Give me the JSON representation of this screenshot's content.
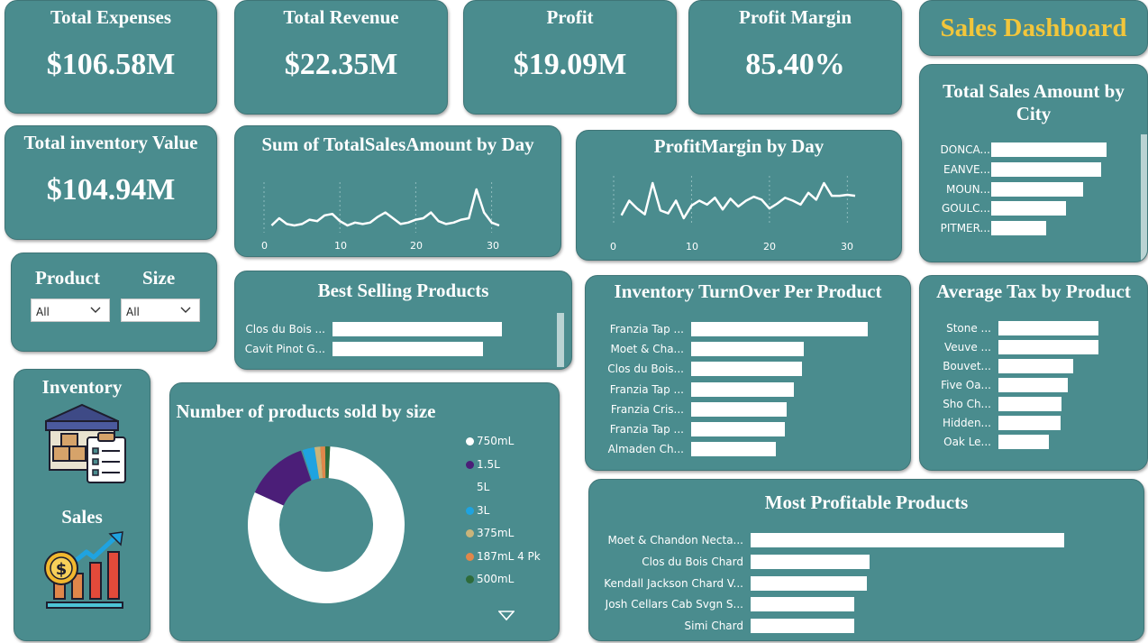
{
  "kpis": {
    "total_expenses": {
      "title": "Total Expenses",
      "value": "$106.58M"
    },
    "total_revenue": {
      "title": "Total Revenue",
      "value": "$22.35M"
    },
    "profit": {
      "title": "Profit",
      "value": "$19.09M"
    },
    "profit_margin": {
      "title": "Profit Margin",
      "value": "85.40%"
    },
    "inventory_value": {
      "title": "Total inventory Value",
      "value": "$104.94M"
    }
  },
  "dashboard_title": "Sales Dashboard",
  "slicers": {
    "product": {
      "label": "Product",
      "value": "All"
    },
    "size": {
      "label": "Size",
      "value": "All"
    }
  },
  "nav": {
    "inventory_label": "Inventory",
    "sales_label": "Sales"
  },
  "colors": {
    "card": "#4a8c8e",
    "title_gold": "#f2c63b",
    "bar": "#ffffff"
  },
  "sales_by_day": {
    "title": "Sum of TotalSalesAmount by Day",
    "x_ticks": [
      "0",
      "10",
      "20",
      "30"
    ],
    "chart_data": {
      "type": "line",
      "x": [
        1,
        2,
        3,
        4,
        5,
        6,
        7,
        8,
        9,
        10,
        11,
        12,
        13,
        14,
        15,
        16,
        17,
        18,
        19,
        20,
        21,
        22,
        23,
        24,
        25,
        26,
        27,
        28,
        29,
        30,
        31
      ],
      "values": [
        3,
        8,
        4,
        3,
        4,
        7,
        6,
        10,
        11,
        6,
        3,
        5,
        4,
        5,
        9,
        12,
        8,
        4,
        5,
        7,
        8,
        12,
        6,
        4,
        5,
        7,
        8,
        28,
        12,
        5,
        3
      ],
      "xlim": [
        0,
        31
      ]
    }
  },
  "profit_margin_by_day": {
    "title": "ProfitMargin by Day",
    "x_ticks": [
      "0",
      "10",
      "20",
      "30"
    ],
    "chart_data": {
      "type": "line",
      "x": [
        1,
        2,
        3,
        4,
        5,
        6,
        7,
        8,
        9,
        10,
        11,
        12,
        13,
        14,
        15,
        16,
        17,
        18,
        19,
        20,
        21,
        22,
        23,
        24,
        25,
        26,
        27,
        28,
        29,
        30,
        31
      ],
      "values": [
        84.5,
        86.0,
        85.2,
        84.6,
        87.8,
        85.0,
        84.7,
        86.0,
        84.2,
        85.5,
        86.0,
        85.6,
        86.3,
        85.1,
        86.2,
        85.4,
        86.0,
        86.4,
        86.1,
        85.2,
        85.7,
        86.3,
        86.0,
        85.6,
        86.8,
        86.1,
        87.8,
        86.5,
        86.5,
        86.6,
        86.5
      ],
      "xlim": [
        0,
        31
      ]
    }
  },
  "best_selling": {
    "title": "Best Selling Products",
    "chart_data": {
      "type": "bar",
      "categories": [
        "Clos du Bois ...",
        "Cavit Pinot G..."
      ],
      "values": [
        100,
        89
      ]
    }
  },
  "inventory_turnover": {
    "title": "Inventory TurnOver Per Product",
    "chart_data": {
      "type": "bar",
      "categories": [
        "Franzia Tap ...",
        "Moet & Cha...",
        "Clos du Bois...",
        "Franzia Tap ...",
        "Franzia Cris...",
        "Franzia Tap ...",
        "Almaden Ch..."
      ],
      "values": [
        100,
        64,
        63,
        58,
        54,
        53,
        48
      ]
    }
  },
  "average_tax": {
    "title": "Average Tax by Product",
    "chart_data": {
      "type": "bar",
      "categories": [
        "Stone ...",
        "Veuve ...",
        "Bouvet...",
        "Five Oa...",
        "Sho Ch...",
        "Hidden...",
        "Oak Le..."
      ],
      "values": [
        100,
        100,
        75,
        69,
        63,
        62,
        50
      ]
    }
  },
  "sales_by_city": {
    "title": "Total Sales Amount by City",
    "chart_data": {
      "type": "bar",
      "categories": [
        "DONCA...",
        "EANVE...",
        "MOUN...",
        "GOULC...",
        "PITMER..."
      ],
      "values": [
        100,
        95,
        80,
        65,
        48
      ]
    }
  },
  "most_profitable": {
    "title": "Most Profitable Products",
    "chart_data": {
      "type": "bar",
      "categories": [
        "Moet & Chandon Necta...",
        "Clos du Bois Chard",
        "Kendall Jackson Chard V...",
        "Josh Cellars Cab Svgn S...",
        "Simi Chard"
      ],
      "values": [
        100,
        38,
        37,
        33,
        33
      ]
    }
  },
  "products_by_size": {
    "title": "Number of products sold by size",
    "chart_data": {
      "type": "pie",
      "categories": [
        "750mL",
        "1.5L",
        "5L",
        "3L",
        "375mL",
        "187mL 4 Pk",
        "500mL"
      ],
      "values": [
        81,
        13,
        0.3,
        2.5,
        1.2,
        1.0,
        1.0
      ],
      "colors": [
        "#ffffff",
        "#4b1e78",
        "#4a8c8e",
        "#1fa3e0",
        "#c9b47a",
        "#e0874a",
        "#2e6b3a"
      ]
    }
  }
}
